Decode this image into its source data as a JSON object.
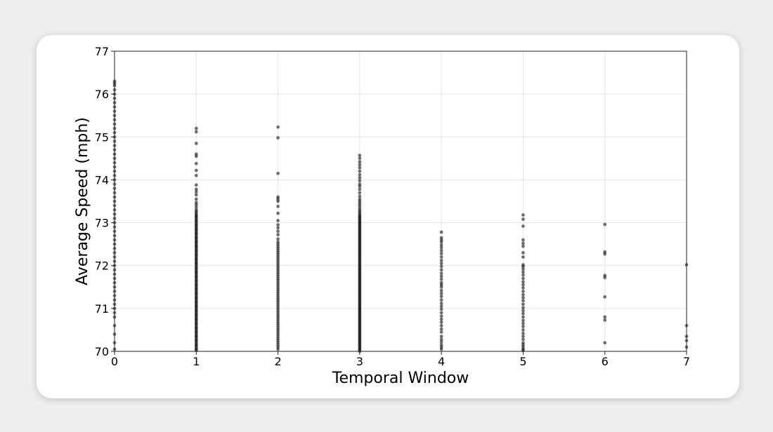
{
  "chart_data": {
    "type": "scatter",
    "title": "",
    "xlabel": "Temporal Window",
    "ylabel": "Average Speed (mph)",
    "xlim": [
      0,
      7
    ],
    "ylim": [
      70,
      77
    ],
    "xticks": [
      "0",
      "1",
      "2",
      "3",
      "4",
      "5",
      "6",
      "7"
    ],
    "yticks": [
      "70",
      "71",
      "72",
      "73",
      "74",
      "75",
      "76",
      "77"
    ],
    "grid": true,
    "legend": "none",
    "point_color": "#000000",
    "series": [
      {
        "x": 0,
        "y": [
          76.3,
          76.25,
          76.2,
          76.1,
          76.0,
          75.9,
          75.8,
          75.7,
          75.6,
          75.5,
          75.4,
          75.3,
          75.2,
          75.1,
          75.0,
          74.9,
          74.8,
          74.7,
          74.6,
          74.5,
          74.4,
          74.3,
          74.2,
          74.1,
          74.0,
          73.9,
          73.8,
          73.7,
          73.6,
          73.5,
          73.4,
          73.3,
          73.2,
          73.1,
          73.0,
          72.9,
          72.8,
          72.7,
          72.6,
          72.5,
          72.4,
          72.3,
          72.2,
          72.1,
          72.0,
          71.9,
          71.8,
          71.7,
          71.6,
          71.5,
          71.4,
          71.3,
          71.2,
          71.1,
          71.0,
          70.9,
          70.8,
          70.6,
          70.4,
          70.2,
          70.05
        ]
      },
      {
        "x": 1,
        "y": [
          75.2,
          75.12,
          74.85,
          74.6,
          74.55,
          74.38,
          74.22,
          74.1,
          73.88,
          73.78,
          73.72,
          73.65,
          73.55,
          73.47,
          73.42,
          73.36,
          73.3,
          73.26,
          73.22,
          73.18,
          73.15,
          73.12,
          73.08,
          73.05,
          73.02,
          72.98,
          72.95,
          72.92,
          72.88,
          72.85,
          72.82,
          72.78,
          72.75,
          72.72,
          72.68,
          72.65,
          72.62,
          72.58,
          72.55,
          72.52,
          72.48,
          72.45,
          72.42,
          72.38,
          72.35,
          72.32,
          72.28,
          72.25,
          72.22,
          72.18,
          72.15,
          72.12,
          72.08,
          72.05,
          72.02,
          71.98,
          71.95,
          71.92,
          71.88,
          71.85,
          71.82,
          71.78,
          71.75,
          71.72,
          71.68,
          71.65,
          71.62,
          71.58,
          71.55,
          71.52,
          71.48,
          71.45,
          71.42,
          71.38,
          71.35,
          71.32,
          71.28,
          71.25,
          71.22,
          71.18,
          71.15,
          71.12,
          71.08,
          71.05,
          71.02,
          70.98,
          70.95,
          70.92,
          70.88,
          70.85,
          70.82,
          70.78,
          70.75,
          70.72,
          70.68,
          70.65,
          70.62,
          70.58,
          70.55,
          70.52,
          70.48,
          70.45,
          70.42,
          70.38,
          70.35,
          70.32,
          70.28,
          70.25,
          70.22,
          70.18,
          70.15,
          70.12,
          70.08,
          70.05,
          70.02
        ]
      },
      {
        "x": 2,
        "y": [
          75.23,
          74.98,
          74.15,
          73.6,
          73.55,
          73.5,
          73.38,
          73.22,
          73.05,
          72.95,
          72.88,
          72.8,
          72.72,
          72.62,
          72.55,
          72.5,
          72.45,
          72.4,
          72.35,
          72.3,
          72.25,
          72.2,
          72.15,
          72.1,
          72.05,
          72.0,
          71.95,
          71.9,
          71.85,
          71.8,
          71.75,
          71.7,
          71.65,
          71.6,
          71.55,
          71.5,
          71.45,
          71.4,
          71.35,
          71.3,
          71.25,
          71.2,
          71.15,
          71.1,
          71.05,
          71.0,
          70.95,
          70.9,
          70.85,
          70.8,
          70.75,
          70.7,
          70.65,
          70.6,
          70.55,
          70.5,
          70.45,
          70.4,
          70.35,
          70.3,
          70.25,
          70.2,
          70.15,
          70.1,
          70.05
        ]
      },
      {
        "x": 3,
        "y": [
          74.57,
          74.5,
          74.42,
          74.35,
          74.28,
          74.2,
          74.12,
          74.05,
          73.98,
          73.9,
          73.85,
          73.78,
          73.7,
          73.62,
          73.55,
          73.5,
          73.45,
          73.4,
          73.35,
          73.3,
          73.26,
          73.22,
          73.18,
          73.15,
          73.12,
          73.09,
          73.06,
          73.03,
          73.0,
          72.97,
          72.94,
          72.91,
          72.88,
          72.85,
          72.82,
          72.79,
          72.76,
          72.73,
          72.7,
          72.67,
          72.64,
          72.61,
          72.58,
          72.55,
          72.52,
          72.49,
          72.46,
          72.43,
          72.4,
          72.37,
          72.34,
          72.31,
          72.28,
          72.25,
          72.22,
          72.19,
          72.16,
          72.13,
          72.1,
          72.07,
          72.04,
          72.01,
          71.98,
          71.95,
          71.92,
          71.89,
          71.86,
          71.83,
          71.8,
          71.77,
          71.74,
          71.71,
          71.68,
          71.65,
          71.62,
          71.59,
          71.56,
          71.53,
          71.5,
          71.47,
          71.44,
          71.41,
          71.38,
          71.35,
          71.32,
          71.29,
          71.26,
          71.23,
          71.2,
          71.17,
          71.14,
          71.11,
          71.08,
          71.05,
          71.02,
          70.99,
          70.96,
          70.93,
          70.9,
          70.87,
          70.84,
          70.81,
          70.78,
          70.75,
          70.72,
          70.69,
          70.66,
          70.63,
          70.6,
          70.57,
          70.54,
          70.51,
          70.48,
          70.45,
          70.42,
          70.39,
          70.36,
          70.33,
          70.3,
          70.27,
          70.24,
          70.21,
          70.18,
          70.15,
          70.12,
          70.09,
          70.06,
          70.03,
          70.0
        ]
      },
      {
        "x": 4,
        "y": [
          72.78,
          72.65,
          72.6,
          72.55,
          72.48,
          72.42,
          72.35,
          72.28,
          72.2,
          72.12,
          72.05,
          71.98,
          71.9,
          71.82,
          71.75,
          71.68,
          71.6,
          71.55,
          71.5,
          71.42,
          71.35,
          71.28,
          71.2,
          71.12,
          71.05,
          70.98,
          70.9,
          70.82,
          70.75,
          70.68,
          70.6,
          70.52,
          70.45,
          70.35,
          70.28,
          70.22,
          70.15,
          70.1,
          70.05
        ]
      },
      {
        "x": 5,
        "y": [
          73.18,
          73.08,
          72.92,
          72.6,
          72.52,
          72.45,
          72.3,
          72.2,
          72.02,
          71.98,
          71.92,
          71.85,
          71.78,
          71.7,
          71.62,
          71.55,
          71.48,
          71.4,
          71.32,
          71.25,
          71.18,
          71.1,
          71.02,
          70.95,
          70.88,
          70.8,
          70.72,
          70.65,
          70.58,
          70.5,
          70.42,
          70.35,
          70.28,
          70.2,
          70.15,
          70.1,
          70.05,
          70.02
        ]
      },
      {
        "x": 6,
        "y": [
          72.96,
          72.32,
          72.27,
          71.77,
          71.72,
          71.27,
          70.8,
          70.73,
          70.2
        ]
      },
      {
        "x": 7,
        "y": [
          72.02,
          70.6,
          70.35,
          70.25,
          70.1
        ]
      }
    ]
  }
}
